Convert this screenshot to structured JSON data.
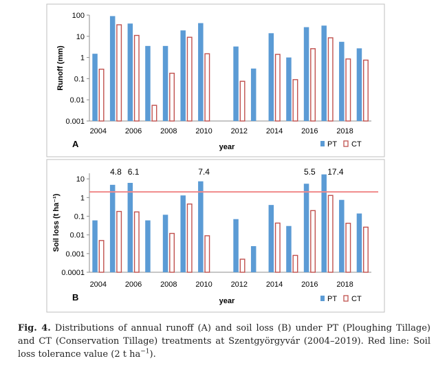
{
  "figure": {
    "caption_label": "Fig. 4.",
    "caption_body": "Distributions of annual runoff (A) and soil loss (B) under PT (Ploughing Tillage) and CT (Conservation Tillage) treatments at Szentgyörgyvár (2004–2019). Red line: Soil loss tolerance value (2 t ha",
    "caption_sup": "−1",
    "caption_end": ")."
  },
  "colors": {
    "pt_fill": "#5b9bd5",
    "ct_stroke": "#c0504d",
    "tolerance_line": "#f08a8a",
    "frame": "#bfbfbf"
  },
  "chart_data": [
    {
      "panel": "A",
      "type": "bar",
      "yscale": "log",
      "ylabel": "Runoff (mm)",
      "xlabel": "year",
      "ylim": [
        0.001,
        100
      ],
      "yticks": [
        "0.001",
        "0.01",
        "0.1",
        "1",
        "10",
        "100"
      ],
      "xtick_labels": [
        "2004",
        "2006",
        "2008",
        "2010",
        "2012",
        "2014",
        "2016",
        "2018"
      ],
      "categories": [
        2004,
        2005,
        2006,
        2007,
        2008,
        2009,
        2010,
        2011,
        2012,
        2013,
        2014,
        2015,
        2016,
        2017,
        2018,
        2019
      ],
      "series": [
        {
          "name": "PT",
          "values": [
            1.5,
            90,
            40,
            3.5,
            3.5,
            19,
            42,
            null,
            3.3,
            0.3,
            14,
            1.0,
            27,
            32,
            5.5,
            2.7
          ]
        },
        {
          "name": "CT",
          "values": [
            0.28,
            35,
            11,
            0.0055,
            0.18,
            9,
            1.5,
            null,
            0.075,
            null,
            1.4,
            0.09,
            2.6,
            8.5,
            0.85,
            0.75
          ]
        }
      ],
      "legend": [
        "PT",
        "CT"
      ],
      "legend_position": "bottom-right"
    },
    {
      "panel": "B",
      "type": "bar",
      "yscale": "log",
      "ylabel": "Soil loss (t ha⁻¹)",
      "xlabel": "year",
      "ylim": [
        0.0001,
        20
      ],
      "yticks": [
        "0.0001",
        "0.001",
        "0.01",
        "0.1",
        "1",
        "10"
      ],
      "xtick_labels": [
        "2004",
        "2006",
        "2008",
        "2010",
        "2012",
        "2014",
        "2016",
        "2018"
      ],
      "categories": [
        2004,
        2005,
        2006,
        2007,
        2008,
        2009,
        2010,
        2011,
        2012,
        2013,
        2014,
        2015,
        2016,
        2017,
        2018,
        2019
      ],
      "series": [
        {
          "name": "PT",
          "values": [
            0.06,
            4.8,
            6.1,
            0.06,
            0.12,
            1.3,
            7.4,
            null,
            0.07,
            0.0025,
            0.4,
            0.03,
            5.5,
            17.4,
            0.75,
            0.14
          ]
        },
        {
          "name": "CT",
          "values": [
            0.005,
            0.18,
            0.17,
            null,
            0.012,
            0.45,
            0.009,
            null,
            0.0005,
            null,
            0.043,
            0.0008,
            0.2,
            1.3,
            0.042,
            0.026
          ]
        }
      ],
      "annotations": [
        {
          "year": 2005,
          "text": "4.8"
        },
        {
          "year": 2006,
          "text": "6.1"
        },
        {
          "year": 2010,
          "text": "7.4"
        },
        {
          "year": 2016,
          "text": "5.5"
        },
        {
          "year": 2017,
          "text": "17.4"
        }
      ],
      "tolerance_value": 2,
      "legend": [
        "PT",
        "CT"
      ],
      "legend_position": "bottom-right"
    }
  ]
}
